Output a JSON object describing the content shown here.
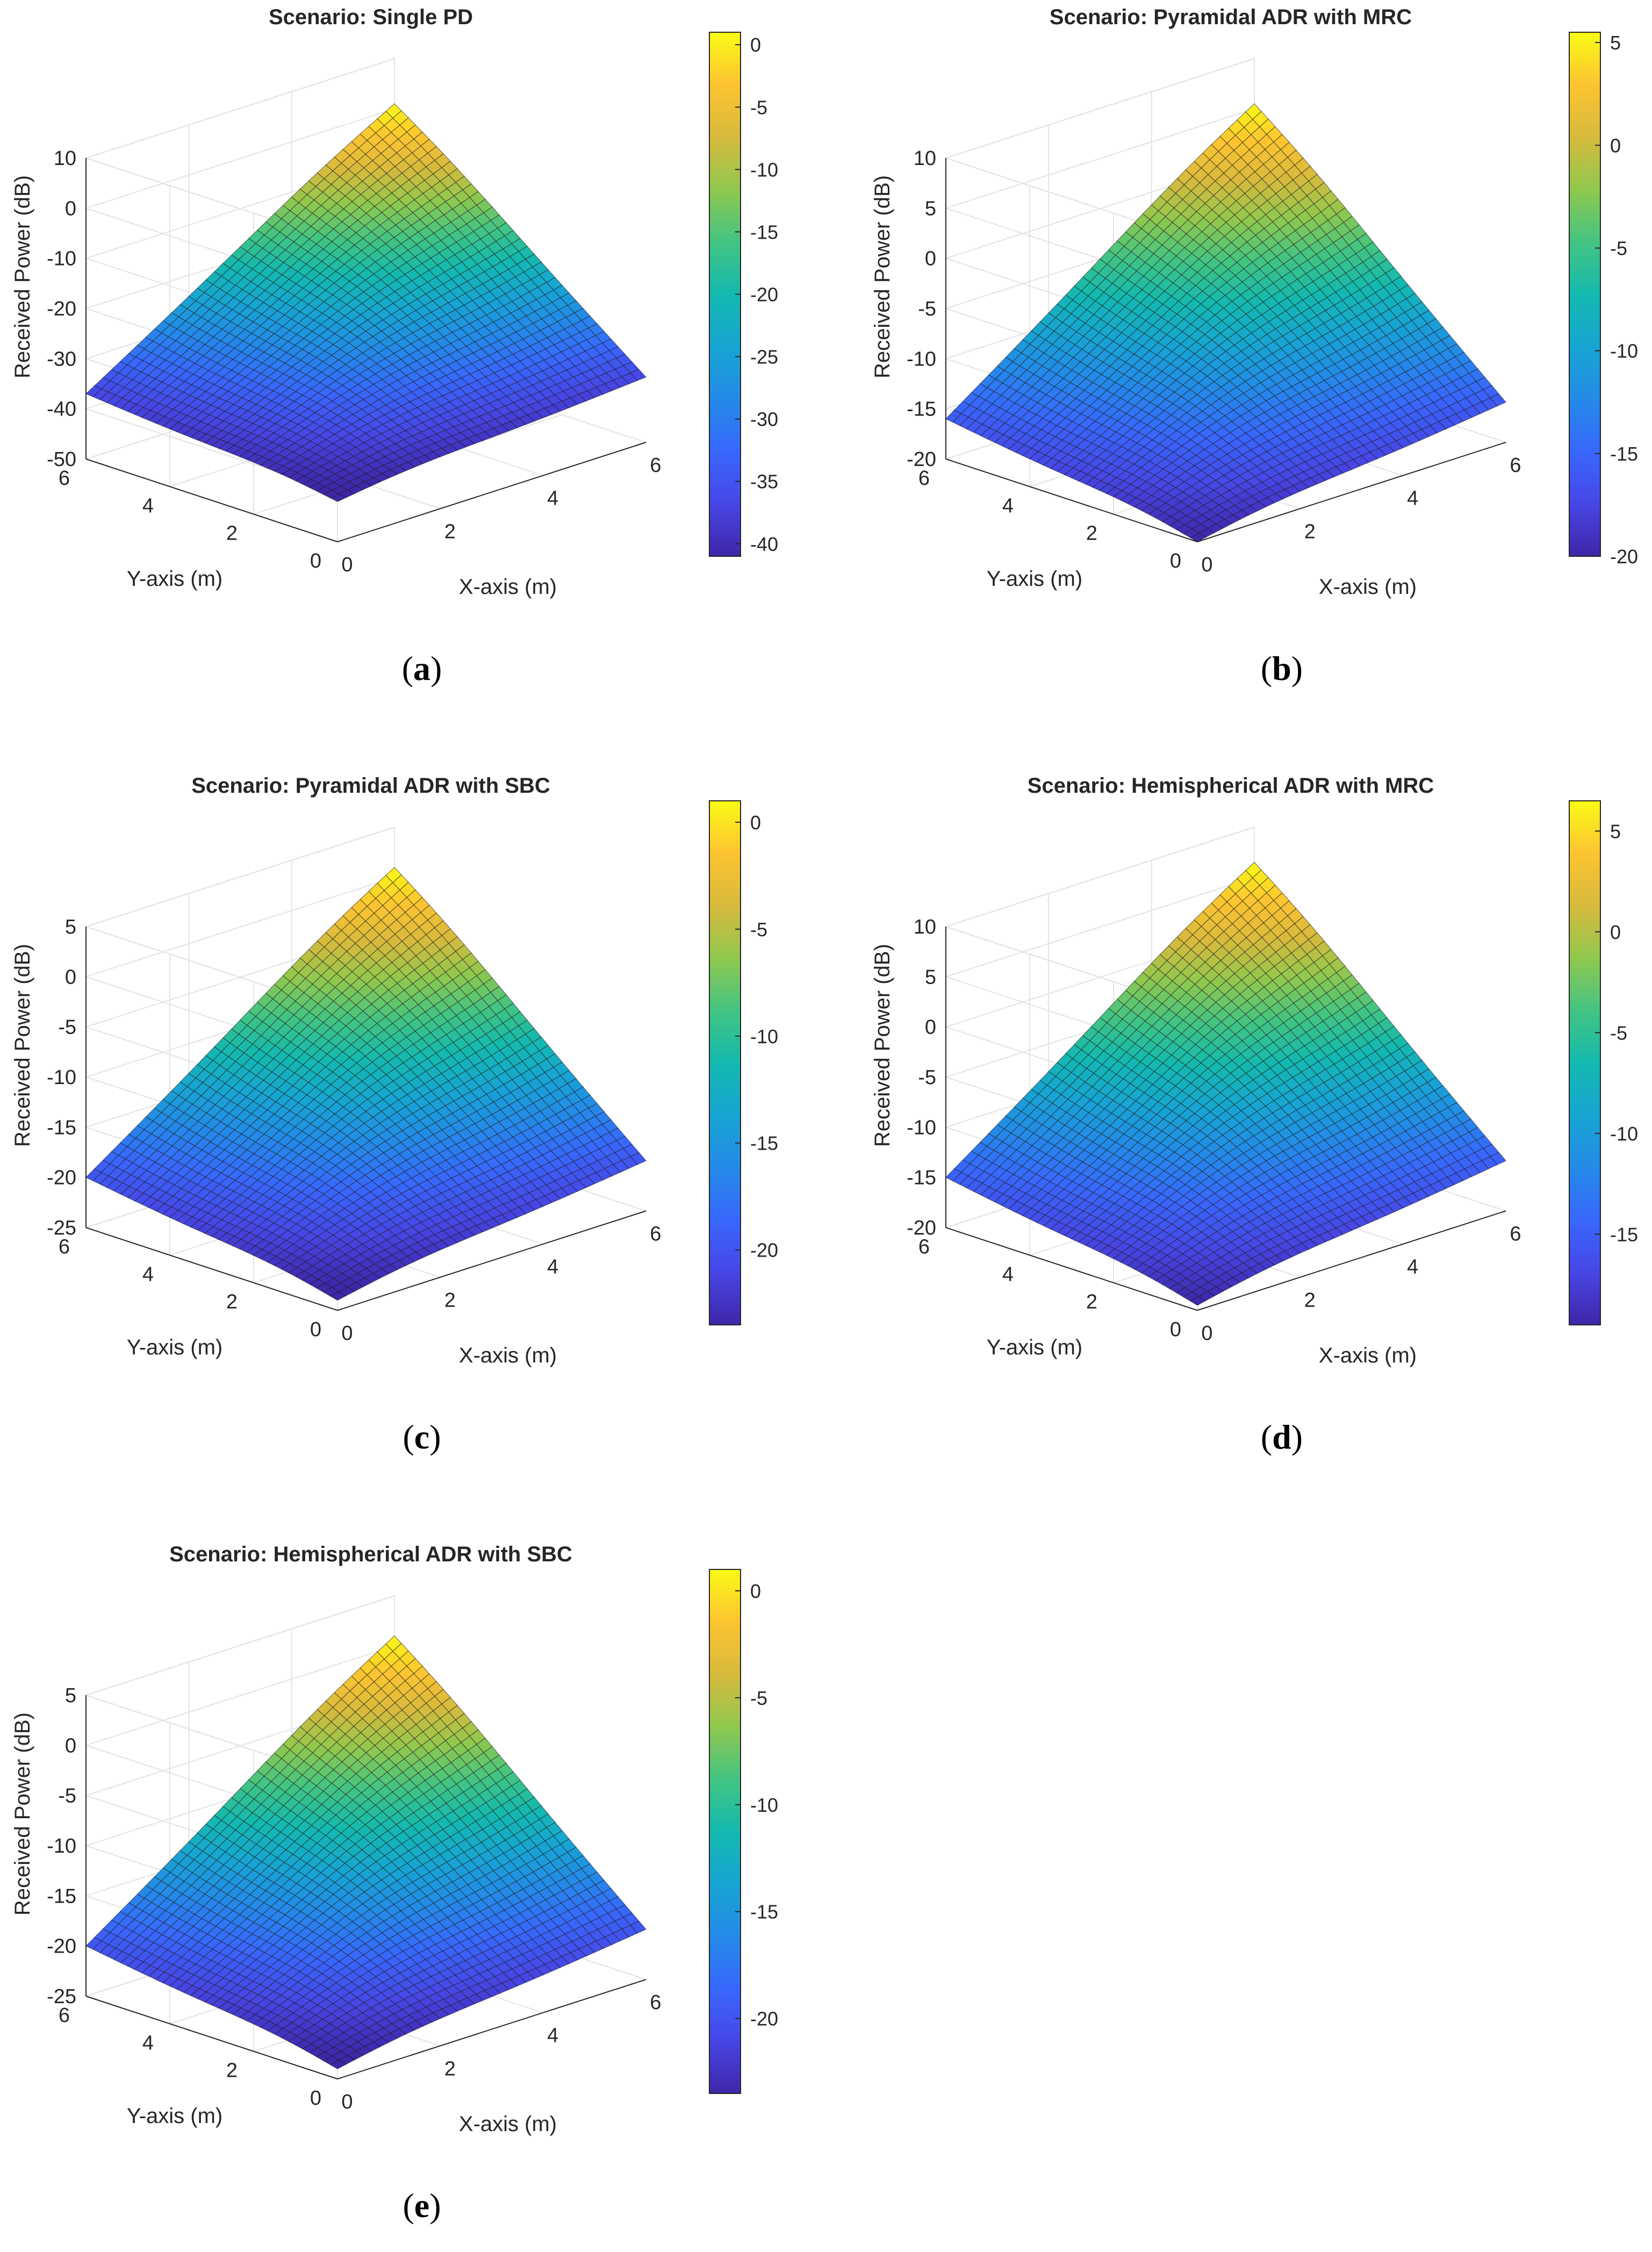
{
  "figure": {
    "shared_ylabel": "Received Power (dB)"
  },
  "chart_data": [
    {
      "type": "surface3d",
      "id": "a",
      "caption_letter": "a",
      "title": "Scenario: Single PD",
      "xlabel": "X-axis (m)",
      "ylabel": "Y-axis (m)",
      "zlabel": "Received Power (dB)",
      "xlim": [
        0,
        6
      ],
      "ylim": [
        0,
        6
      ],
      "zlim": [
        -50,
        10
      ],
      "xticks": [
        0,
        2,
        4,
        6
      ],
      "yticks": [
        0,
        2,
        4,
        6
      ],
      "zticks": [
        -50,
        -40,
        -30,
        -20,
        -10,
        0,
        10
      ],
      "peak": {
        "x": 6,
        "y": 6,
        "z": 1
      },
      "corners": {
        "x0y0": -42,
        "x6y0": -37,
        "x0y6": -37,
        "x6y6": 1
      },
      "colorbar": {
        "min": -41,
        "max": 1,
        "ticks": [
          -40,
          -35,
          -30,
          -25,
          -20,
          -15,
          -10,
          -5,
          0
        ]
      }
    },
    {
      "type": "surface3d",
      "id": "b",
      "caption_letter": "b",
      "title": "Scenario: Pyramidal ADR with MRC",
      "xlabel": "X-axis (m)",
      "ylabel": "Y-axis (m)",
      "zlabel": "Received Power (dB)",
      "xlim": [
        0,
        6
      ],
      "ylim": [
        0,
        6
      ],
      "zlim": [
        -20,
        10
      ],
      "xticks": [
        0,
        2,
        4,
        6
      ],
      "yticks": [
        0,
        2,
        4,
        6
      ],
      "zticks": [
        -20,
        -15,
        -10,
        -5,
        0,
        5,
        10
      ],
      "peak": {
        "x": 6,
        "y": 6,
        "z": 5.5
      },
      "corners": {
        "x0y0": -20,
        "x6y0": -16,
        "x0y6": -16,
        "x6y6": 5.5
      },
      "colorbar": {
        "min": -20,
        "max": 5.5,
        "ticks": [
          -20,
          -15,
          -10,
          -5,
          0,
          5
        ]
      }
    },
    {
      "type": "surface3d",
      "id": "c",
      "caption_letter": "c",
      "title": "Scenario: Pyramidal ADR with SBC",
      "xlabel": "X-axis (m)",
      "ylabel": "Y-axis (m)",
      "zlabel": "Received Power (dB)",
      "xlim": [
        0,
        6
      ],
      "ylim": [
        0,
        6
      ],
      "zlim": [
        -25,
        5
      ],
      "xticks": [
        0,
        2,
        4,
        6
      ],
      "yticks": [
        0,
        2,
        4,
        6
      ],
      "zticks": [
        -25,
        -20,
        -15,
        -10,
        -5,
        0,
        5
      ],
      "peak": {
        "x": 6,
        "y": 6,
        "z": 1
      },
      "corners": {
        "x0y0": -24,
        "x6y0": -20,
        "x0y6": -20,
        "x6y6": 1
      },
      "colorbar": {
        "min": -23.5,
        "max": 1,
        "ticks": [
          -20,
          -15,
          -10,
          -5,
          0
        ]
      }
    },
    {
      "type": "surface3d",
      "id": "d",
      "caption_letter": "d",
      "title": "Scenario: Hemispherical ADR with MRC",
      "xlabel": "X-axis (m)",
      "ylabel": "Y-axis (m)",
      "zlabel": "Received Power (dB)",
      "xlim": [
        0,
        6
      ],
      "ylim": [
        0,
        6
      ],
      "zlim": [
        -20,
        10
      ],
      "xticks": [
        0,
        2,
        4,
        6
      ],
      "yticks": [
        0,
        2,
        4,
        6
      ],
      "zticks": [
        -20,
        -15,
        -10,
        -5,
        0,
        5,
        10
      ],
      "peak": {
        "x": 6,
        "y": 6,
        "z": 6.5
      },
      "corners": {
        "x0y0": -19.5,
        "x6y0": -15,
        "x0y6": -15,
        "x6y6": 6.5
      },
      "colorbar": {
        "min": -19.5,
        "max": 6.5,
        "ticks": [
          -15,
          -10,
          -5,
          0,
          5
        ]
      }
    },
    {
      "type": "surface3d",
      "id": "e",
      "caption_letter": "e",
      "title": "Scenario: Hemispherical ADR with SBC",
      "xlabel": "X-axis (m)",
      "ylabel": "Y-axis (m)",
      "zlabel": "Received Power (dB)",
      "xlim": [
        0,
        6
      ],
      "ylim": [
        0,
        6
      ],
      "zlim": [
        -25,
        5
      ],
      "xticks": [
        0,
        2,
        4,
        6
      ],
      "yticks": [
        0,
        2,
        4,
        6
      ],
      "zticks": [
        -25,
        -20,
        -15,
        -10,
        -5,
        0,
        5
      ],
      "peak": {
        "x": 6,
        "y": 6,
        "z": 1
      },
      "corners": {
        "x0y0": -24,
        "x6y0": -20,
        "x0y6": -20,
        "x6y6": 1
      },
      "colorbar": {
        "min": -23.5,
        "max": 1,
        "ticks": [
          -20,
          -15,
          -10,
          -5,
          0
        ]
      }
    }
  ]
}
